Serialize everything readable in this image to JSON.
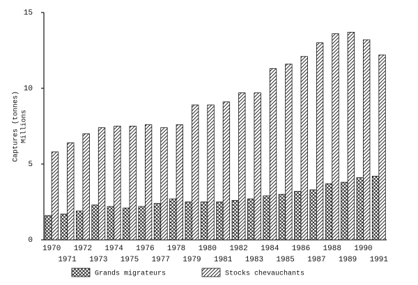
{
  "chart_data": {
    "type": "bar",
    "y_label": [
      "Captures (tonnes)",
      "Millions"
    ],
    "categories": [
      "1970",
      "1971",
      "1972",
      "1973",
      "1974",
      "1975",
      "1976",
      "1977",
      "1978",
      "1979",
      "1980",
      "1981",
      "1982",
      "1983",
      "1984",
      "1985",
      "1986",
      "1987",
      "1988",
      "1989",
      "1990",
      "1991"
    ],
    "series": [
      {
        "name": "Grands migrateurs",
        "color": "#111111",
        "hatch": "crosshatch",
        "values": [
          1.6,
          1.7,
          1.9,
          2.3,
          2.2,
          2.1,
          2.2,
          2.4,
          2.7,
          2.5,
          2.5,
          2.5,
          2.6,
          2.7,
          2.9,
          3.0,
          3.2,
          3.3,
          3.7,
          3.8,
          4.1,
          4.2
        ]
      },
      {
        "name": "Stocks chevauchants",
        "color": "#111111",
        "hatch": "diagonal",
        "values": [
          5.8,
          6.4,
          7.0,
          7.4,
          7.5,
          7.5,
          7.6,
          7.4,
          7.6,
          8.9,
          8.9,
          9.1,
          9.7,
          9.7,
          11.3,
          11.6,
          12.1,
          13.0,
          13.6,
          13.7,
          13.2,
          12.2
        ]
      }
    ],
    "ylim": [
      0,
      15
    ],
    "yticks": [
      0,
      5,
      10,
      15
    ],
    "grid": false,
    "legend": "bottom"
  }
}
